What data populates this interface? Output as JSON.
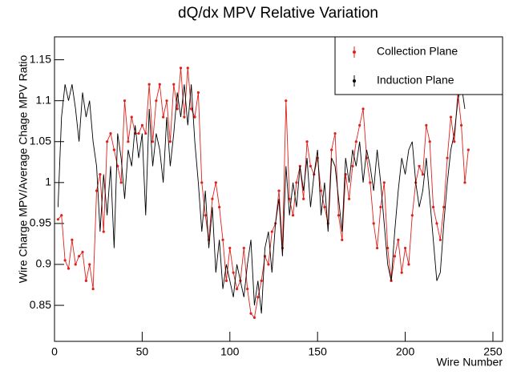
{
  "chart_data": {
    "type": "line",
    "title": "dQ/dx MPV Relative Variation",
    "x_label": "Wire Number",
    "y_label": "Wire Charge MPV/Average Chage MPV Ratio",
    "x": [
      2,
      4,
      6,
      8,
      10,
      12,
      14,
      16,
      18,
      20,
      22,
      24,
      26,
      28,
      30,
      32,
      34,
      36,
      38,
      40,
      42,
      44,
      46,
      48,
      50,
      52,
      54,
      56,
      58,
      60,
      62,
      64,
      66,
      68,
      70,
      72,
      74,
      76,
      78,
      80,
      82,
      84,
      86,
      88,
      90,
      92,
      94,
      96,
      98,
      100,
      102,
      104,
      106,
      108,
      110,
      112,
      114,
      116,
      118,
      120,
      122,
      124,
      126,
      128,
      130,
      132,
      134,
      136,
      138,
      140,
      142,
      144,
      146,
      148,
      150,
      152,
      154,
      156,
      158,
      160,
      162,
      164,
      166,
      168,
      170,
      172,
      174,
      176,
      178,
      180,
      182,
      184,
      186,
      188,
      190,
      192,
      194,
      196,
      198,
      200,
      202,
      204,
      206,
      208,
      210,
      212,
      214,
      216,
      218,
      220,
      222,
      224,
      226,
      228,
      230,
      232,
      234,
      236
    ],
    "series": [
      {
        "name": "Collection Plane",
        "color": "#e0201b",
        "markers": true,
        "values": [
          0.955,
          0.96,
          0.905,
          0.895,
          0.93,
          0.9,
          0.91,
          0.915,
          0.88,
          0.9,
          0.87,
          0.99,
          1.01,
          0.94,
          1.05,
          1.06,
          1.04,
          1.02,
          1.0,
          1.1,
          1.05,
          1.08,
          1.06,
          1.06,
          1.07,
          1.06,
          1.12,
          1.05,
          1.1,
          1.12,
          1.08,
          1.1,
          1.05,
          1.12,
          1.09,
          1.14,
          1.08,
          1.14,
          1.09,
          1.08,
          1.11,
          1.0,
          0.96,
          0.93,
          0.98,
          1.0,
          0.97,
          0.93,
          0.88,
          0.92,
          0.89,
          0.87,
          0.88,
          0.92,
          0.87,
          0.84,
          0.835,
          0.86,
          0.88,
          0.91,
          0.9,
          0.94,
          0.95,
          0.99,
          0.92,
          1.1,
          0.98,
          0.96,
          1.0,
          1.02,
          0.98,
          1.05,
          1.02,
          1.01,
          1.03,
          0.99,
          0.97,
          0.95,
          1.04,
          1.06,
          0.96,
          0.93,
          1.01,
          0.98,
          1.02,
          1.05,
          1.07,
          1.09,
          1.03,
          1.0,
          0.95,
          0.92,
          0.97,
          1.0,
          0.92,
          0.88,
          0.91,
          0.93,
          0.89,
          0.92,
          0.9,
          0.96,
          1.0,
          1.02,
          1.01,
          1.07,
          1.05,
          0.97,
          0.95,
          0.93,
          0.97,
          1.03,
          1.08,
          1.05,
          1.11,
          1.07,
          1.0,
          1.04
        ]
      },
      {
        "name": "Induction Plane",
        "color": "#000000",
        "markers": false,
        "values": [
          0.97,
          1.08,
          1.12,
          1.1,
          1.12,
          1.09,
          1.05,
          1.11,
          1.08,
          1.1,
          1.05,
          1.02,
          0.94,
          1.01,
          0.96,
          1.02,
          0.92,
          1.06,
          1.03,
          0.98,
          1.04,
          1.02,
          1.07,
          1.03,
          1.06,
          0.96,
          1.09,
          1.02,
          1.06,
          1.04,
          1.0,
          1.08,
          1.02,
          1.06,
          1.11,
          1.08,
          1.12,
          1.07,
          1.12,
          1.05,
          1.0,
          0.94,
          0.99,
          0.92,
          0.97,
          0.89,
          0.93,
          0.87,
          0.9,
          0.88,
          0.86,
          0.9,
          0.88,
          0.86,
          0.9,
          0.93,
          0.85,
          0.88,
          0.84,
          0.92,
          0.94,
          0.89,
          0.95,
          0.98,
          0.91,
          1.02,
          0.96,
          1.0,
          0.97,
          1.02,
          0.99,
          1.03,
          0.97,
          1.01,
          1.04,
          0.96,
          1.0,
          0.94,
          1.03,
          1.02,
          0.98,
          0.94,
          1.03,
          1.0,
          1.04,
          1.02,
          1.05,
          1.0,
          1.04,
          1.02,
          0.99,
          1.04,
          1.0,
          0.95,
          0.9,
          0.88,
          0.94,
          0.99,
          1.03,
          1.01,
          1.04,
          1.05,
          1.0,
          0.97,
          0.99,
          1.03,
          0.98,
          0.93,
          0.88,
          0.89,
          0.95,
          1.0,
          1.04,
          1.06,
          1.1,
          1.12,
          1.09,
          null
        ]
      }
    ],
    "xlim": [
      0,
      255.5
    ],
    "ylim": [
      0.806,
      1.178
    ],
    "xticks": [
      0,
      50,
      100,
      150,
      200,
      250
    ],
    "yticks": [
      0.85,
      0.9,
      0.95,
      1,
      1.05,
      1.1,
      1.15
    ],
    "legend": "top-right"
  }
}
